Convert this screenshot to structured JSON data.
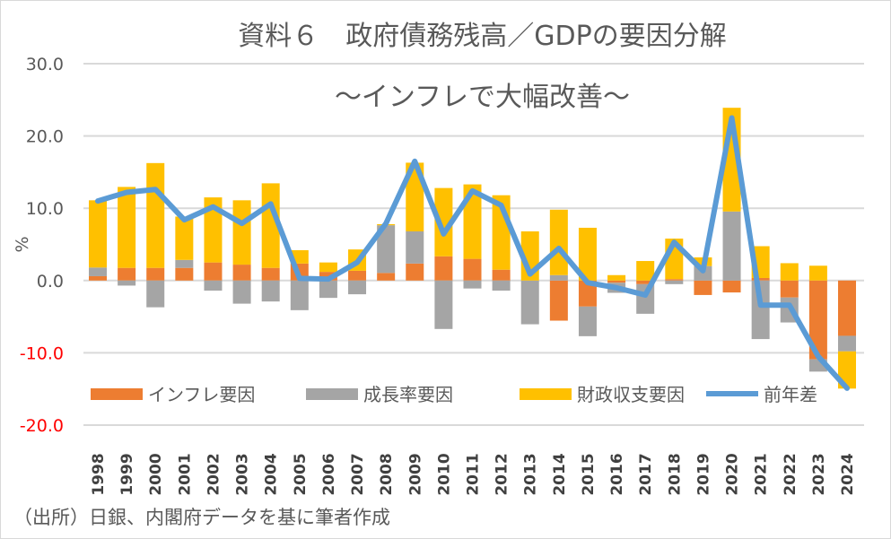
{
  "chart_data": {
    "type": "bar",
    "stacked": true,
    "title": "資料６　政府債務残高／GDPの要因分解",
    "subtitle": "～インフレで大幅改善～",
    "ylabel": "%",
    "ylim": [
      -20,
      30
    ],
    "yticks": [
      "30.0",
      "20.0",
      "10.0",
      "0.0",
      "-10.0",
      "-20.0"
    ],
    "ytick_values": [
      30,
      20,
      10,
      0,
      -10,
      -20
    ],
    "negative_tick_color": "#ff0000",
    "grid": true,
    "legend": "bottom-inside",
    "categories": [
      "1998",
      "1999",
      "2000",
      "2001",
      "2002",
      "2003",
      "2004",
      "2005",
      "2006",
      "2007",
      "2008",
      "2009",
      "2010",
      "2011",
      "2012",
      "2013",
      "2014",
      "2015",
      "2016",
      "2017",
      "2018",
      "2019",
      "2020",
      "2021",
      "2022",
      "2023",
      "2024"
    ],
    "series": [
      {
        "name": "インフレ要因",
        "type": "bar",
        "color": "#ed7d31",
        "values": [
          0.6,
          1.75,
          1.75,
          1.75,
          2.5,
          2.2,
          1.75,
          2.35,
          1.2,
          1.35,
          1.05,
          2.35,
          3.35,
          3.0,
          1.5,
          0,
          -5.55,
          -3.6,
          -0.3,
          -0.5,
          0.2,
          -2.0,
          -1.65,
          0.35,
          -2.35,
          -10.9,
          -7.65
        ]
      },
      {
        "name": "成長率要因",
        "type": "bar",
        "color": "#a5a5a5",
        "values": [
          1.2,
          -0.7,
          -3.7,
          1.1,
          -1.4,
          -3.2,
          -2.9,
          -4.1,
          -2.4,
          -1.9,
          6.6,
          4.45,
          -6.7,
          -1.1,
          -1.4,
          -6.05,
          0.75,
          -4.1,
          -1.4,
          -4.1,
          -0.5,
          2.0,
          9.55,
          -8.1,
          -3.45,
          -1.7,
          -2.15
        ]
      },
      {
        "name": "財政収支要因",
        "type": "bar",
        "color": "#ffc000",
        "values": [
          9.3,
          11.2,
          14.5,
          6.0,
          9.0,
          8.9,
          11.7,
          1.85,
          1.3,
          2.95,
          0.15,
          9.5,
          9.45,
          10.3,
          10.3,
          6.8,
          9.05,
          7.3,
          0.75,
          2.7,
          5.6,
          1.2,
          14.35,
          4.4,
          2.4,
          2.05,
          -5.15
        ]
      },
      {
        "name": "前年差",
        "type": "line",
        "color": "#5b9bd5",
        "values": [
          11.0,
          12.2,
          12.6,
          8.4,
          10.2,
          7.9,
          10.6,
          0.3,
          0.2,
          2.5,
          7.9,
          16.5,
          6.45,
          12.4,
          10.4,
          0.9,
          4.45,
          -0.3,
          -1.0,
          -2.0,
          5.3,
          1.35,
          22.5,
          -3.4,
          -3.4,
          -10.5,
          -14.9
        ]
      }
    ]
  },
  "footer": "（出所）日銀、内閣府データを基に筆者作成"
}
